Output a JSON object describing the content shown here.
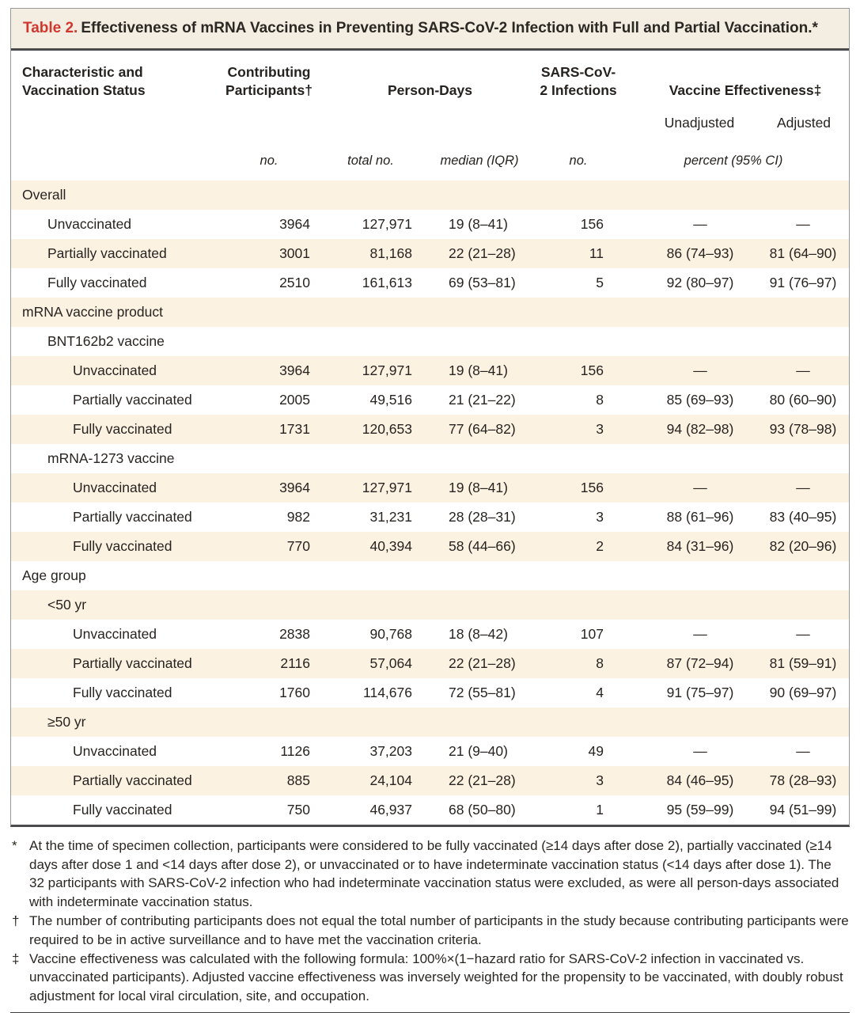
{
  "title": {
    "label": "Table 2.",
    "text": "Effectiveness of mRNA Vaccines in Preventing SARS-CoV-2 Infection with Full and Partial Vaccination.*"
  },
  "header": {
    "col_characteristic": "Characteristic and Vaccination Status",
    "col_participants": "Contributing Participants†",
    "col_person_days": "Person-Days",
    "col_infections": "SARS-CoV-2 Infections",
    "col_effectiveness": "Vaccine Effectiveness‡",
    "sub_unadjusted": "Unadjusted",
    "sub_adjusted": "Adjusted",
    "unit_participants": "no.",
    "unit_person_days_total": "total no.",
    "unit_person_days_median": "median (IQR)",
    "unit_infections": "no.",
    "unit_effectiveness": "percent (95% CI)"
  },
  "rows": [
    {
      "label": "Overall",
      "indent": 0,
      "type": "section",
      "values": []
    },
    {
      "label": "Unvaccinated",
      "indent": 1,
      "type": "data",
      "values": [
        "3964",
        "127,971",
        "19 (8–41)",
        "156",
        "—",
        "—"
      ]
    },
    {
      "label": "Partially vaccinated",
      "indent": 1,
      "type": "data",
      "values": [
        "3001",
        "81,168",
        "22 (21–28)",
        "11",
        "86 (74–93)",
        "81 (64–90)"
      ]
    },
    {
      "label": "Fully vaccinated",
      "indent": 1,
      "type": "data",
      "values": [
        "2510",
        "161,613",
        "69 (53–81)",
        "5",
        "92 (80–97)",
        "91 (76–97)"
      ]
    },
    {
      "label": "mRNA vaccine product",
      "indent": 0,
      "type": "section",
      "values": []
    },
    {
      "label": "BNT162b2 vaccine",
      "indent": 1,
      "type": "section",
      "values": []
    },
    {
      "label": "Unvaccinated",
      "indent": 2,
      "type": "data",
      "values": [
        "3964",
        "127,971",
        "19 (8–41)",
        "156",
        "—",
        "—"
      ]
    },
    {
      "label": "Partially vaccinated",
      "indent": 2,
      "type": "data",
      "values": [
        "2005",
        "49,516",
        "21 (21–22)",
        "8",
        "85 (69–93)",
        "80 (60–90)"
      ]
    },
    {
      "label": "Fully vaccinated",
      "indent": 2,
      "type": "data",
      "values": [
        "1731",
        "120,653",
        "77 (64–82)",
        "3",
        "94 (82–98)",
        "93 (78–98)"
      ]
    },
    {
      "label": "mRNA-1273 vaccine",
      "indent": 1,
      "type": "section",
      "values": []
    },
    {
      "label": "Unvaccinated",
      "indent": 2,
      "type": "data",
      "values": [
        "3964",
        "127,971",
        "19 (8–41)",
        "156",
        "—",
        "—"
      ]
    },
    {
      "label": "Partially vaccinated",
      "indent": 2,
      "type": "data",
      "values": [
        "982",
        "31,231",
        "28 (28–31)",
        "3",
        "88 (61–96)",
        "83 (40–95)"
      ]
    },
    {
      "label": "Fully vaccinated",
      "indent": 2,
      "type": "data",
      "values": [
        "770",
        "40,394",
        "58 (44–66)",
        "2",
        "84 (31–96)",
        "82 (20–96)"
      ]
    },
    {
      "label": "Age group",
      "indent": 0,
      "type": "section",
      "values": []
    },
    {
      "label": "<50 yr",
      "indent": 1,
      "type": "section",
      "values": []
    },
    {
      "label": "Unvaccinated",
      "indent": 2,
      "type": "data",
      "values": [
        "2838",
        "90,768",
        "18 (8–42)",
        "107",
        "—",
        "—"
      ]
    },
    {
      "label": "Partially vaccinated",
      "indent": 2,
      "type": "data",
      "values": [
        "2116",
        "57,064",
        "22 (21–28)",
        "8",
        "87 (72–94)",
        "81 (59–91)"
      ]
    },
    {
      "label": "Fully vaccinated",
      "indent": 2,
      "type": "data",
      "values": [
        "1760",
        "114,676",
        "72 (55–81)",
        "4",
        "91 (75–97)",
        "90 (69–97)"
      ]
    },
    {
      "label": "≥50 yr",
      "indent": 1,
      "type": "section",
      "values": []
    },
    {
      "label": "Unvaccinated",
      "indent": 2,
      "type": "data",
      "values": [
        "1126",
        "37,203",
        "21 (9–40)",
        "49",
        "—",
        "—"
      ]
    },
    {
      "label": "Partially vaccinated",
      "indent": 2,
      "type": "data",
      "values": [
        "885",
        "24,104",
        "22 (21–28)",
        "3",
        "84 (46–95)",
        "78 (28–93)"
      ]
    },
    {
      "label": "Fully vaccinated",
      "indent": 2,
      "type": "data",
      "values": [
        "750",
        "46,937",
        "68 (50–80)",
        "1",
        "95 (59–99)",
        "94 (51–99)"
      ]
    }
  ],
  "footnotes": [
    {
      "symbol": "*",
      "text": "At the time of specimen collection, participants were considered to be fully vaccinated (≥14 days after dose 2), partially vaccinated (≥14 days after dose 1 and <14 days after dose 2), or unvaccinated or to have indeterminate vaccination status (<14 days after dose 1). The 32 participants with SARS-CoV-2 infection who had indeterminate vaccination status were excluded, as were all person-days associated with indeterminate vaccination status."
    },
    {
      "symbol": "†",
      "text": "The number of contributing participants does not equal the total number of participants in the study because contributing participants were required to be in active surveillance and to have met the vaccination criteria."
    },
    {
      "symbol": "‡",
      "text": "Vaccine effectiveness was calculated with the following formula: 100%×(1−hazard ratio for SARS-CoV-2 infection in vaccinated vs. unvaccinated participants). Adjusted vaccine effectiveness was inversely weighted for the propensity to be vaccinated, with doubly robust adjustment for local viral circulation, site, and occupation."
    }
  ],
  "colors": {
    "accent_red": "#d0382f",
    "stripe_cream": "#fcf2e1",
    "title_beige": "#f4eee2",
    "rule_dark": "#4b4b4e"
  }
}
